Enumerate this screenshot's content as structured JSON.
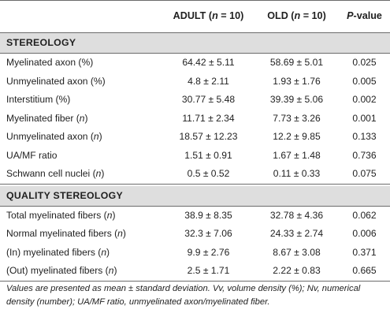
{
  "header": {
    "col_blank": "",
    "adult": "ADULT (n = 10)",
    "old": "OLD (n = 10)",
    "pvalue": "P-value"
  },
  "sections": [
    {
      "title": "STEREOLOGY",
      "rows": [
        {
          "label": "Myelinated axon (%)",
          "adult": "64.42 ± 5.11",
          "old": "58.69 ± 5.01",
          "p": "0.025"
        },
        {
          "label": "Unmyelinated axon (%)",
          "adult": "4.8 ± 2.11",
          "old": "1.93 ± 1.76",
          "p": "0.005"
        },
        {
          "label": "Interstitium (%)",
          "adult": "30.77 ± 5.48",
          "old": "39.39 ± 5.06",
          "p": "0.002"
        },
        {
          "label": "Myelinated fiber (n)",
          "adult": "11.71 ± 2.34",
          "old": "7.73 ± 3.26",
          "p": "0.001"
        },
        {
          "label": "Unmyelinated axon (n)",
          "adult": "18.57 ± 12.23",
          "old": "12.2 ± 9.85",
          "p": "0.133"
        },
        {
          "label": "UA/MF ratio",
          "adult": "1.51 ± 0.91",
          "old": "1.67 ± 1.48",
          "p": "0.736"
        },
        {
          "label": "Schwann cell nuclei (n)",
          "adult": "0.5 ± 0.52",
          "old": "0.11 ± 0.33",
          "p": "0.075"
        }
      ]
    },
    {
      "title": "QUALITY STEREOLOGY",
      "rows": [
        {
          "label": "Total myelinated fibers (n)",
          "adult": "38.9 ± 8.35",
          "old": "32.78 ± 4.36",
          "p": "0.062"
        },
        {
          "label": "Normal myelinated fibers (n)",
          "adult": "32.3 ± 7.06",
          "old": "24.33 ± 2.74",
          "p": "0.006"
        },
        {
          "label": "(In) myelinated fibers (n)",
          "adult": "9.9 ± 2.76",
          "old": "8.67 ± 3.08",
          "p": "0.371"
        },
        {
          "label": "(Out) myelinated fibers (n)",
          "adult": "2.5 ± 1.71",
          "old": "2.22 ± 0.83",
          "p": "0.665"
        }
      ]
    }
  ],
  "footnote": "Values are presented as mean ± standard deviation. Vv, volume density (%); Nv, numerical density (number); UA/MF ratio, unmyelinated axon/myelinated fiber."
}
